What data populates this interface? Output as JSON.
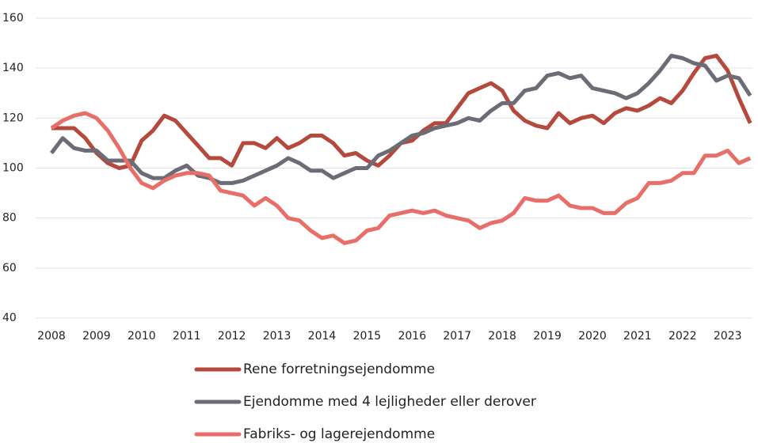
{
  "chart_data": {
    "type": "line",
    "x": [
      2008,
      2008.25,
      2008.5,
      2008.75,
      2009,
      2009.25,
      2009.5,
      2009.75,
      2010,
      2010.25,
      2010.5,
      2010.75,
      2011,
      2011.25,
      2011.5,
      2011.75,
      2012,
      2012.25,
      2012.5,
      2012.75,
      2013,
      2013.25,
      2013.5,
      2013.75,
      2014,
      2014.25,
      2014.5,
      2014.75,
      2015,
      2015.25,
      2015.5,
      2015.75,
      2016,
      2016.25,
      2016.5,
      2016.75,
      2017,
      2017.25,
      2017.5,
      2017.75,
      2018,
      2018.25,
      2018.5,
      2018.75,
      2019,
      2019.25,
      2019.5,
      2019.75,
      2020,
      2020.25,
      2020.5,
      2020.75,
      2021,
      2021.25,
      2021.5,
      2021.75,
      2022,
      2022.25,
      2022.5,
      2022.75,
      2023,
      2023.25,
      2023.5
    ],
    "series": [
      {
        "name": "Rene forretningsejendomme",
        "color": "#b5493d",
        "values": [
          116,
          116,
          116,
          112,
          106,
          102,
          100,
          101,
          111,
          115,
          121,
          119,
          114,
          109,
          104,
          104,
          101,
          110,
          110,
          108,
          112,
          108,
          110,
          113,
          113,
          110,
          105,
          106,
          103,
          101,
          105,
          110,
          111,
          115,
          118,
          118,
          124,
          130,
          132,
          134,
          131,
          123,
          119,
          117,
          116,
          122,
          118,
          120,
          121,
          118,
          122,
          124,
          123,
          125,
          128,
          126,
          131,
          138,
          144,
          145,
          139,
          128,
          118
        ]
      },
      {
        "name": "Ejendomme med 4 lejligheder eller derover",
        "color": "#6b6c76",
        "values": [
          106,
          112,
          108,
          107,
          107,
          103,
          103,
          103,
          98,
          96,
          96,
          99,
          101,
          97,
          96,
          94,
          94,
          95,
          97,
          99,
          101,
          104,
          102,
          99,
          99,
          96,
          98,
          100,
          100,
          105,
          107,
          110,
          113,
          114,
          116,
          117,
          118,
          120,
          119,
          123,
          126,
          126,
          131,
          132,
          137,
          138,
          136,
          137,
          132,
          131,
          130,
          128,
          130,
          134,
          139,
          145,
          144,
          142,
          141,
          135,
          137,
          136,
          129
        ]
      },
      {
        "name": "Fabriks- og lagerejendomme",
        "color": "#e86f69",
        "values": [
          116,
          119,
          121,
          122,
          120,
          115,
          108,
          100,
          94,
          92,
          95,
          97,
          98,
          98,
          97,
          91,
          90,
          89,
          85,
          88,
          85,
          80,
          79,
          75,
          72,
          73,
          70,
          71,
          75,
          76,
          81,
          82,
          83,
          82,
          83,
          81,
          80,
          79,
          76,
          78,
          79,
          82,
          88,
          87,
          87,
          89,
          85,
          84,
          84,
          82,
          82,
          86,
          88,
          94,
          94,
          95,
          98,
          98,
          105,
          105,
          107,
          102,
          104
        ]
      }
    ],
    "xlim": [
      2008,
      2023.55
    ],
    "xticks": [
      2008,
      2009,
      2010,
      2011,
      2012,
      2013,
      2014,
      2015,
      2016,
      2017,
      2018,
      2019,
      2020,
      2021,
      2022,
      2023
    ],
    "ylim": [
      40,
      160
    ],
    "yticks": [
      40,
      60,
      80,
      100,
      120,
      140,
      160
    ],
    "grid": true
  }
}
